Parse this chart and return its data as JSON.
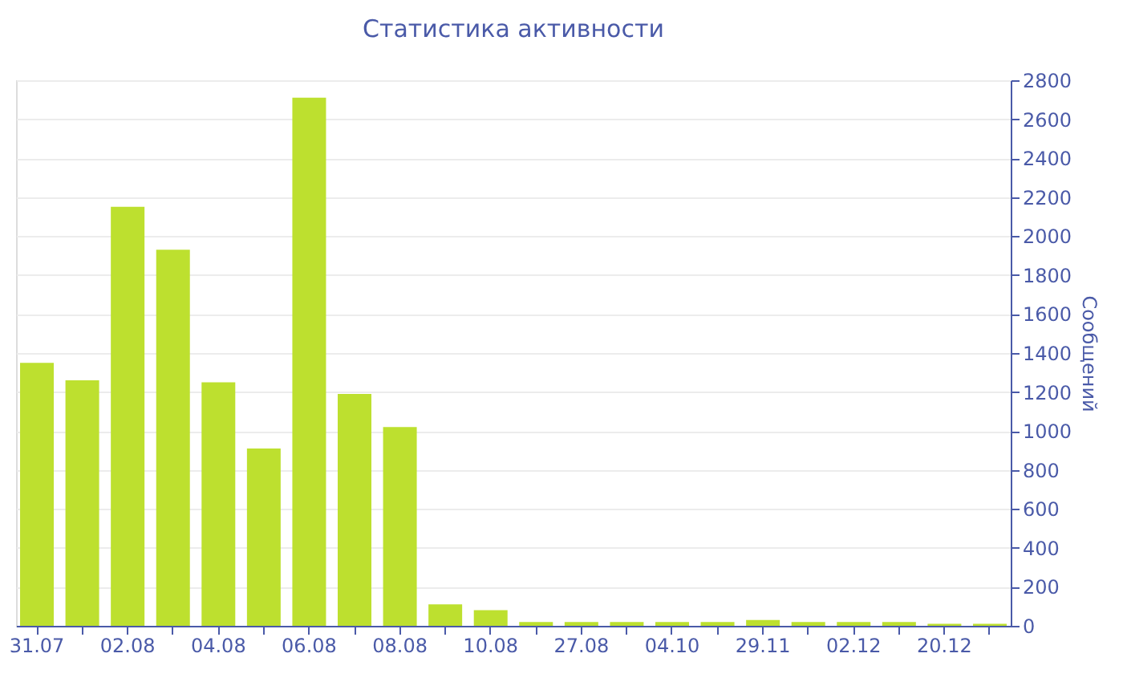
{
  "chart_data": {
    "type": "bar",
    "title": "Статистика активности",
    "ylabel": "Сообщений",
    "categories": [
      "31.07",
      null,
      "02.08",
      null,
      "04.08",
      null,
      "06.08",
      null,
      "08.08",
      null,
      "10.08",
      null,
      "27.08",
      null,
      "04.10",
      null,
      "29.11",
      null,
      "02.12",
      null,
      "20.12",
      null
    ],
    "values": [
      1350,
      1260,
      2150,
      1930,
      1250,
      910,
      2710,
      1190,
      1020,
      110,
      80,
      20,
      20,
      20,
      20,
      20,
      30,
      20,
      20,
      20,
      10,
      10
    ],
    "color": "#bde02f",
    "ylim": [
      0,
      2800
    ],
    "yticks": [
      0,
      200,
      400,
      600,
      800,
      1000,
      1200,
      1400,
      1600,
      1800,
      2000,
      2200,
      2400,
      2600,
      2800
    ],
    "grid": "y"
  }
}
